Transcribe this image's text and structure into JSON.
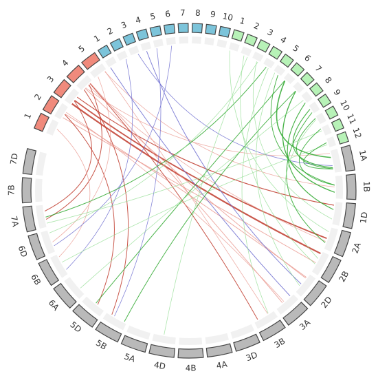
{
  "chromosomes": [
    {
      "id": "r1",
      "label": "1",
      "group": "red"
    },
    {
      "id": "r2",
      "label": "2",
      "group": "red"
    },
    {
      "id": "r3",
      "label": "3",
      "group": "red"
    },
    {
      "id": "r4",
      "label": "4",
      "group": "red"
    },
    {
      "id": "r5",
      "label": "5",
      "group": "red"
    },
    {
      "id": "b1",
      "label": "1",
      "group": "blue"
    },
    {
      "id": "b2",
      "label": "2",
      "group": "blue"
    },
    {
      "id": "b3",
      "label": "3",
      "group": "blue"
    },
    {
      "id": "b4",
      "label": "4",
      "group": "blue"
    },
    {
      "id": "b5",
      "label": "5",
      "group": "blue"
    },
    {
      "id": "b6",
      "label": "6",
      "group": "blue"
    },
    {
      "id": "b7",
      "label": "7",
      "group": "blue"
    },
    {
      "id": "b8",
      "label": "8",
      "group": "blue"
    },
    {
      "id": "b9",
      "label": "9",
      "group": "blue"
    },
    {
      "id": "b10",
      "label": "10",
      "group": "blue"
    },
    {
      "id": "g1",
      "label": "1",
      "group": "green"
    },
    {
      "id": "g2",
      "label": "2",
      "group": "green"
    },
    {
      "id": "g3",
      "label": "3",
      "group": "green"
    },
    {
      "id": "g4",
      "label": "4",
      "group": "green"
    },
    {
      "id": "g5",
      "label": "5",
      "group": "green"
    },
    {
      "id": "g6",
      "label": "6",
      "group": "green"
    },
    {
      "id": "g7",
      "label": "7",
      "group": "green"
    },
    {
      "id": "g8",
      "label": "8",
      "group": "green"
    },
    {
      "id": "g9",
      "label": "9",
      "group": "green"
    },
    {
      "id": "g10",
      "label": "10",
      "group": "green"
    },
    {
      "id": "g11",
      "label": "11",
      "group": "green"
    },
    {
      "id": "g12",
      "label": "12",
      "group": "green"
    },
    {
      "id": "1A",
      "label": "1A",
      "group": "gray"
    },
    {
      "id": "1B",
      "label": "1B",
      "group": "gray"
    },
    {
      "id": "1D",
      "label": "1D",
      "group": "gray"
    },
    {
      "id": "2A",
      "label": "2A",
      "group": "gray"
    },
    {
      "id": "2B",
      "label": "2B",
      "group": "gray"
    },
    {
      "id": "2D",
      "label": "2D",
      "group": "gray"
    },
    {
      "id": "3A",
      "label": "3A",
      "group": "gray"
    },
    {
      "id": "3B",
      "label": "3B",
      "group": "gray"
    },
    {
      "id": "3D",
      "label": "3D",
      "group": "gray"
    },
    {
      "id": "4A",
      "label": "4A",
      "group": "gray"
    },
    {
      "id": "4B",
      "label": "4B",
      "group": "gray"
    },
    {
      "id": "4D",
      "label": "4D",
      "group": "gray"
    },
    {
      "id": "5A",
      "label": "5A",
      "group": "gray"
    },
    {
      "id": "5B",
      "label": "5B",
      "group": "gray"
    },
    {
      "id": "5D",
      "label": "5D",
      "group": "gray"
    },
    {
      "id": "6A",
      "label": "6A",
      "group": "gray"
    },
    {
      "id": "6B",
      "label": "6B",
      "group": "gray"
    },
    {
      "id": "6D",
      "label": "6D",
      "group": "gray"
    },
    {
      "id": "7A",
      "label": "7A",
      "group": "gray"
    },
    {
      "id": "7B",
      "label": "7B",
      "group": "gray"
    },
    {
      "id": "7D",
      "label": "7D",
      "group": "gray"
    }
  ],
  "group_colors": {
    "red": {
      "fill": "#f08a7c",
      "stroke": "#444444"
    },
    "blue": {
      "fill": "#7cc4da",
      "stroke": "#444444"
    },
    "green": {
      "fill": "#b7f2b7",
      "stroke": "#444444"
    },
    "gray": {
      "fill": "#b9b9b9",
      "stroke": "#444444"
    }
  },
  "link_colors": {
    "red": "#c0392b",
    "red_light": "#e8938a",
    "blue": "#6f6fd0",
    "green": "#2ea82e",
    "green_light": "#8fdc8f"
  },
  "links": [
    {
      "from": "r3",
      "to": "2B",
      "color": "red",
      "weight": 2.2
    },
    {
      "from": "r3",
      "to": "2A",
      "color": "red",
      "weight": 1.8
    },
    {
      "from": "r3",
      "to": "1D",
      "color": "red",
      "weight": 1.2
    },
    {
      "from": "r2",
      "to": "2B",
      "color": "red_light",
      "weight": 1
    },
    {
      "from": "r2",
      "to": "2D",
      "color": "red_light",
      "weight": 1
    },
    {
      "from": "r4",
      "to": "3A",
      "color": "red_light",
      "weight": 1
    },
    {
      "from": "r4",
      "to": "2D",
      "color": "red_light",
      "weight": 1
    },
    {
      "from": "r4",
      "to": "2A",
      "color": "red_light",
      "weight": 0.8
    },
    {
      "from": "r5",
      "to": "3B",
      "color": "red_light",
      "weight": 0.8
    },
    {
      "from": "r3",
      "to": "7A",
      "color": "red",
      "weight": 1
    },
    {
      "from": "r4",
      "to": "7A",
      "color": "red",
      "weight": 1
    },
    {
      "from": "r4",
      "to": "5B",
      "color": "red",
      "weight": 1
    },
    {
      "from": "r2",
      "to": "5D",
      "color": "red",
      "weight": 1
    },
    {
      "from": "r4",
      "to": "3B",
      "color": "red",
      "weight": 1
    },
    {
      "from": "r5",
      "to": "6D",
      "color": "red_light",
      "weight": 0.8
    },
    {
      "from": "r1",
      "to": "6B",
      "color": "red_light",
      "weight": 0.8
    },
    {
      "from": "r5",
      "to": "1B",
      "color": "red_light",
      "weight": 0.8
    },
    {
      "from": "r4",
      "to": "1A",
      "color": "red_light",
      "weight": 0.8
    },
    {
      "from": "r2",
      "to": "3A",
      "color": "red_light",
      "weight": 0.8
    },
    {
      "from": "b1",
      "to": "3A",
      "color": "blue",
      "weight": 1
    },
    {
      "from": "b4",
      "to": "2D",
      "color": "blue",
      "weight": 1
    },
    {
      "from": "b2",
      "to": "6B",
      "color": "blue",
      "weight": 0.8
    },
    {
      "from": "b5",
      "to": "5B",
      "color": "blue",
      "weight": 0.8
    },
    {
      "from": "b6",
      "to": "6D",
      "color": "blue",
      "weight": 0.8
    },
    {
      "from": "b3",
      "to": "1A",
      "color": "blue",
      "weight": 0.8
    },
    {
      "from": "g6",
      "to": "1A",
      "color": "green",
      "weight": 1.6
    },
    {
      "from": "g7",
      "to": "1B",
      "color": "green",
      "weight": 1.4
    },
    {
      "from": "g8",
      "to": "1D",
      "color": "green",
      "weight": 1.2
    },
    {
      "from": "g9",
      "to": "1A",
      "color": "green",
      "weight": 1.2
    },
    {
      "from": "g5",
      "to": "1B",
      "color": "green",
      "weight": 1
    },
    {
      "from": "g10",
      "to": "1A",
      "color": "green",
      "weight": 1
    },
    {
      "from": "g4",
      "to": "7A",
      "color": "green",
      "weight": 1
    },
    {
      "from": "g3",
      "to": "6D",
      "color": "green_light",
      "weight": 0.8
    },
    {
      "from": "g6",
      "to": "5D",
      "color": "green",
      "weight": 1
    },
    {
      "from": "g7",
      "to": "5B",
      "color": "green",
      "weight": 1
    },
    {
      "from": "g2",
      "to": "4D",
      "color": "green_light",
      "weight": 0.8
    },
    {
      "from": "g11",
      "to": "7A",
      "color": "green_light",
      "weight": 0.8
    },
    {
      "from": "g12",
      "to": "6B",
      "color": "green_light",
      "weight": 0.8
    },
    {
      "from": "g1",
      "to": "2A",
      "color": "green_light",
      "weight": 0.8
    },
    {
      "from": "g2",
      "to": "2B",
      "color": "green_light",
      "weight": 0.8
    },
    {
      "from": "g4",
      "to": "3B",
      "color": "green_light",
      "weight": 0.8
    },
    {
      "from": "g5",
      "to": "2D",
      "color": "green_light",
      "weight": 0.8
    },
    {
      "from": "g8",
      "to": "6A",
      "color": "green_light",
      "weight": 0.8
    },
    {
      "from": "g9",
      "to": "2A",
      "color": "green",
      "weight": 1
    },
    {
      "from": "g10",
      "to": "2B",
      "color": "green_light",
      "weight": 0.8
    },
    {
      "from": "g3",
      "to": "1D",
      "color": "green_light",
      "weight": 0.8
    },
    {
      "from": "g11",
      "to": "1B",
      "color": "green",
      "weight": 1
    },
    {
      "from": "g12",
      "to": "1A",
      "color": "green",
      "weight": 1
    }
  ]
}
